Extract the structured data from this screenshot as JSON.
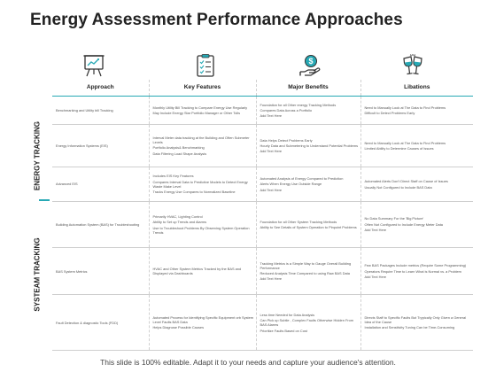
{
  "title": "Energy Assessment Performance Approaches",
  "accent_color": "#27a9b5",
  "icons": [
    "presentation-board-icon",
    "checklist-icon",
    "money-hand-icon",
    "wine-glasses-icon"
  ],
  "sections": [
    "ENERGY TRACKING",
    "SYSTEAM TRACKING"
  ],
  "columns": [
    "Approach",
    "Key Features",
    "Major Benefits",
    "Libations"
  ],
  "rows": [
    {
      "approach": [
        "Benchmarking and Utility bill Tracking"
      ],
      "features": [
        "Monthly Utility Bill Tracking to Compare Energy Use Regularly",
        "May Include Energy Star Portfolio Manager or Other Tolls"
      ],
      "benefits": [
        "Foundation for all Other energy Tracking Methods",
        "Compares Data Across a Portfolio",
        "Add Text Here"
      ],
      "libations": [
        "Need to Manually Look at The Data to Find Problems",
        "Difficult to Detect Problems Early"
      ]
    },
    {
      "approach": [
        "Energy Information Systems (EIS)"
      ],
      "features": [
        "Interval Meter data tracking at the Building and Often Submeter Levels",
        "Portfolio Analysis& Benchmarking",
        "Data Filtering Load Shape Analysis"
      ],
      "benefits": [
        "Data Helps Detect Problems Early",
        "Hourly Data and Submetering to Understand Potential Problems",
        "Add Text Here"
      ],
      "libations": [
        "Need to Manually Look at The Data to Find Problems",
        "Limited Ability to Determine Causes of Issues"
      ]
    },
    {
      "approach": [
        "Advanced EIS"
      ],
      "features": [
        "Includes EIS Key Features",
        "Compares Interval Data to Predictive Models to Detect Energy Waste Make Level",
        "Tracks Energy Use Compares to Normalized Baseline"
      ],
      "benefits": [
        "Automated Analysis of Energy Compared to Prediction",
        "Alerts When Energy Use Outside Range",
        "Add Text Here"
      ],
      "libations": [
        "Automated Alerts Don't Direct Staff on Cause of Issues",
        "Usually Not Configured to Include BAS Data"
      ]
    },
    {
      "approach": [
        "Building Automation System (BAS) for Troubleshooting"
      ],
      "features": [
        "Primarily HVAC, Lighting Control",
        "Ability to Set up Trends and Alarms",
        "Use to Troubleshoot Problems By Observing System Operation Trends"
      ],
      "benefits": [
        "Foundation for all Other System Tracking Methods",
        "Ability to See Details of System Operation to Pinpoint Problems"
      ],
      "libations": [
        "No Data Summary For the 'Big Picture'",
        "Often Not Configured to Include Energy Meter Data",
        "Add Text Here"
      ]
    },
    {
      "approach": [
        "BAS System Metrics"
      ],
      "features": [
        "HVAC and Other System Metrics Tracked by the BAS and Displayed via Dashboards"
      ],
      "benefits": [
        "Tracking Metrics is a Simple Way to Gauge Overall Building Performance",
        "Reduced Analysis Time Compared to using Raw BAS Data",
        "Add Text Here"
      ],
      "libations": [
        "Few BAS Packages Include metrics (Require Some Programming)",
        "Operators Require Time to Learn What is Normal vs. a Problem",
        "Add Text Here"
      ]
    },
    {
      "approach": [
        "Fault Detection & diagnostic Tools (FDD)"
      ],
      "features": [
        "Automated Process for Identifying Specific Equipment orb System Level Faults BAS Data",
        "Helps Diagnose Possible Causes"
      ],
      "benefits": [
        "Less time Needed for Data Analysis",
        "Can Pick up Subtle , Complex Faults Otherwise Hidden From BAS Alarms",
        "Prioritize Faults Based on Cost"
      ],
      "libations": [
        "Directs Staff to Specific Faults But Trypically Only Given a General Idea of the Cause",
        "Installation and Sensitivity Tuning Can be Time-Consuming"
      ]
    }
  ],
  "footer": "This slide is 100% editable. Adapt it to your needs and capture your audience's attention."
}
